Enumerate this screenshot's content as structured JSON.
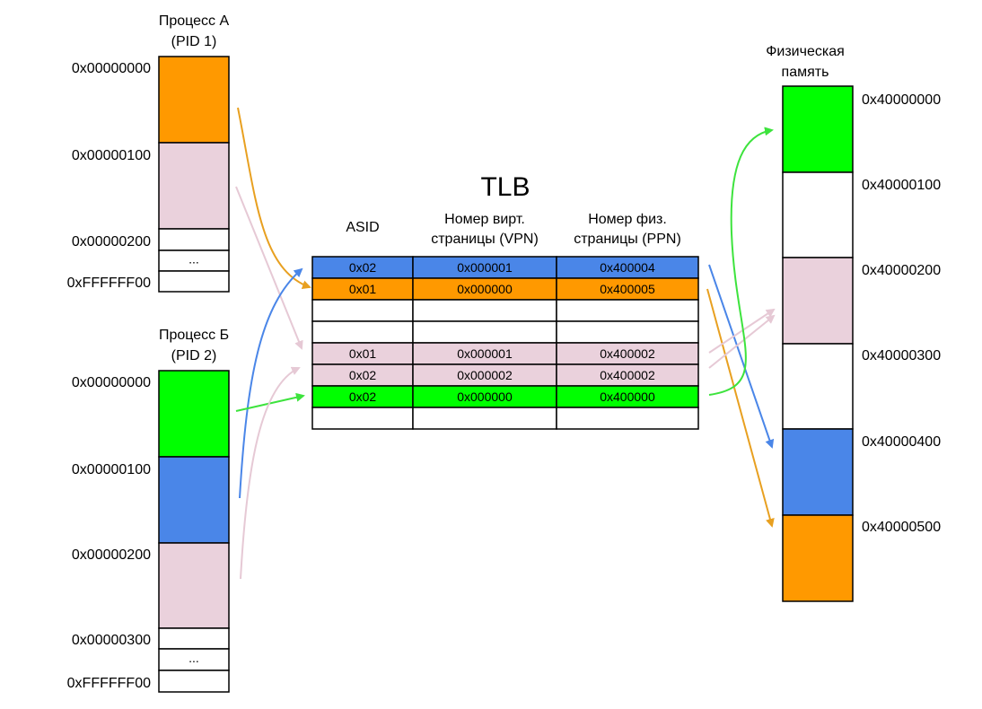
{
  "colors": {
    "orange": "#FF9900",
    "pink": "#EAD1DC",
    "green": "#00FF00",
    "blue": "#4A86E8",
    "white": "#FFFFFF",
    "arrow_orange": "#E8A020",
    "arrow_blue": "#4A86E8",
    "arrow_green": "#3DE33D",
    "arrow_pink": "#E6C9D5"
  },
  "process_a": {
    "title": "Процесс А",
    "subtitle": "(PID 1)",
    "blocks": [
      {
        "color": "orange"
      },
      {
        "color": "pink"
      },
      {
        "color": "white"
      },
      {
        "color": "white",
        "text": "..."
      },
      {
        "color": "white"
      }
    ],
    "addresses": [
      "0x00000000",
      "0x00000100",
      "0x00000200",
      "0xFFFFFF00"
    ]
  },
  "process_b": {
    "title": "Процесс Б",
    "subtitle": "(PID 2)",
    "blocks": [
      {
        "color": "green"
      },
      {
        "color": "blue"
      },
      {
        "color": "pink"
      },
      {
        "color": "white"
      },
      {
        "color": "white",
        "text": "..."
      },
      {
        "color": "white"
      }
    ],
    "addresses": [
      "0x00000000",
      "0x00000100",
      "0x00000200",
      "0x00000300",
      "0xFFFFFF00"
    ]
  },
  "tlb": {
    "title": "TLB",
    "headers": [
      [
        "ASID"
      ],
      [
        "Номер вирт.",
        "страницы (VPN)"
      ],
      [
        "Номер физ.",
        "страницы (PPN)"
      ]
    ],
    "rows": [
      {
        "color": "blue",
        "cells": [
          "0x02",
          "0x000001",
          "0x400004"
        ]
      },
      {
        "color": "orange",
        "cells": [
          "0x01",
          "0x000000",
          "0x400005"
        ]
      },
      {
        "color": "white",
        "cells": [
          "",
          "",
          ""
        ]
      },
      {
        "color": "white",
        "cells": [
          "",
          "",
          ""
        ]
      },
      {
        "color": "pink",
        "cells": [
          "0x01",
          "0x000001",
          "0x400002"
        ]
      },
      {
        "color": "pink",
        "cells": [
          "0x02",
          "0x000002",
          "0x400002"
        ]
      },
      {
        "color": "green",
        "cells": [
          "0x02",
          "0x000000",
          "0x400000"
        ]
      },
      {
        "color": "white",
        "cells": [
          "",
          "",
          ""
        ]
      }
    ]
  },
  "physical_memory": {
    "title": "Физическая",
    "subtitle": "память",
    "blocks": [
      {
        "color": "green"
      },
      {
        "color": "white"
      },
      {
        "color": "pink"
      },
      {
        "color": "white"
      },
      {
        "color": "blue"
      },
      {
        "color": "orange"
      }
    ],
    "addresses": [
      "0x40000000",
      "0x40000100",
      "0x40000200",
      "0x40000300",
      "0x40000400",
      "0x40000500"
    ]
  }
}
